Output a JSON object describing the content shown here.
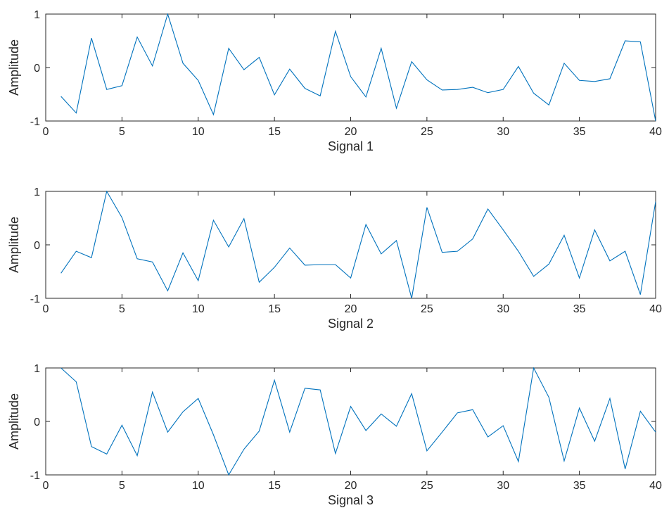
{
  "chart_data": [
    {
      "type": "line",
      "xlabel": "Signal 1",
      "ylabel": "Amplitude",
      "xlim": [
        0,
        40
      ],
      "ylim": [
        -1,
        1
      ],
      "xticks": [
        0,
        5,
        10,
        15,
        20,
        25,
        30,
        35,
        40
      ],
      "yticks": [
        -1,
        0,
        1
      ],
      "grid": false,
      "color": "#0072BD",
      "series": [
        {
          "x": [
            1,
            2,
            3,
            4,
            5,
            6,
            7,
            8,
            9,
            10,
            11,
            12,
            13,
            14,
            15,
            16,
            17,
            18,
            19,
            20,
            21,
            22,
            23,
            24,
            25,
            26,
            27,
            28,
            29,
            30,
            31,
            32,
            33,
            34,
            35,
            36,
            37,
            38,
            39,
            40
          ],
          "values": [
            -0.54,
            -0.85,
            0.55,
            -0.41,
            -0.34,
            0.57,
            0.03,
            1.0,
            0.08,
            -0.24,
            -0.88,
            0.36,
            -0.04,
            0.19,
            -0.51,
            -0.03,
            -0.39,
            -0.53,
            0.68,
            -0.17,
            -0.55,
            0.36,
            -0.76,
            0.11,
            -0.23,
            -0.42,
            -0.41,
            -0.37,
            -0.47,
            -0.41,
            0.02,
            -0.48,
            -0.7,
            0.08,
            -0.24,
            -0.26,
            -0.21,
            0.5,
            0.48,
            -1.0
          ]
        }
      ]
    },
    {
      "type": "line",
      "xlabel": "Signal 2",
      "ylabel": "Amplitude",
      "xlim": [
        0,
        40
      ],
      "ylim": [
        -1,
        1
      ],
      "xticks": [
        0,
        5,
        10,
        15,
        20,
        25,
        30,
        35,
        40
      ],
      "yticks": [
        -1,
        0,
        1
      ],
      "grid": false,
      "color": "#0072BD",
      "series": [
        {
          "x": [
            1,
            2,
            3,
            4,
            5,
            6,
            7,
            8,
            9,
            10,
            11,
            12,
            13,
            14,
            15,
            16,
            17,
            18,
            19,
            20,
            21,
            22,
            23,
            24,
            25,
            26,
            27,
            28,
            29,
            30,
            31,
            32,
            33,
            34,
            35,
            36,
            37,
            38,
            39,
            40
          ],
          "values": [
            -0.53,
            -0.12,
            -0.24,
            1.0,
            0.51,
            -0.26,
            -0.32,
            -0.86,
            -0.15,
            -0.67,
            0.46,
            -0.04,
            0.49,
            -0.7,
            -0.42,
            -0.06,
            -0.38,
            -0.37,
            -0.37,
            -0.62,
            0.38,
            -0.17,
            0.08,
            -1.0,
            0.7,
            -0.14,
            -0.12,
            0.11,
            0.67,
            0.28,
            -0.12,
            -0.59,
            -0.36,
            0.18,
            -0.62,
            0.28,
            -0.3,
            -0.12,
            -0.93,
            0.81
          ]
        }
      ]
    },
    {
      "type": "line",
      "xlabel": "Signal 3",
      "ylabel": "Amplitude",
      "xlim": [
        0,
        40
      ],
      "ylim": [
        -1,
        1
      ],
      "xticks": [
        0,
        5,
        10,
        15,
        20,
        25,
        30,
        35,
        40
      ],
      "yticks": [
        -1,
        0,
        1
      ],
      "grid": false,
      "color": "#0072BD",
      "series": [
        {
          "x": [
            1,
            2,
            3,
            4,
            5,
            6,
            7,
            8,
            9,
            10,
            11,
            12,
            13,
            14,
            15,
            16,
            17,
            18,
            19,
            20,
            21,
            22,
            23,
            24,
            25,
            26,
            27,
            28,
            29,
            30,
            31,
            32,
            33,
            34,
            35,
            36,
            37,
            38,
            39,
            40
          ],
          "values": [
            1.0,
            0.74,
            -0.47,
            -0.61,
            -0.07,
            -0.64,
            0.55,
            -0.2,
            0.18,
            0.43,
            -0.25,
            -1.0,
            -0.52,
            -0.18,
            0.77,
            -0.2,
            0.62,
            0.59,
            -0.6,
            0.28,
            -0.17,
            0.14,
            -0.09,
            0.52,
            -0.55,
            -0.2,
            0.16,
            0.22,
            -0.29,
            -0.08,
            -0.75,
            1.0,
            0.45,
            -0.74,
            0.25,
            -0.37,
            0.43,
            -0.89,
            0.19,
            -0.2
          ]
        }
      ]
    }
  ]
}
